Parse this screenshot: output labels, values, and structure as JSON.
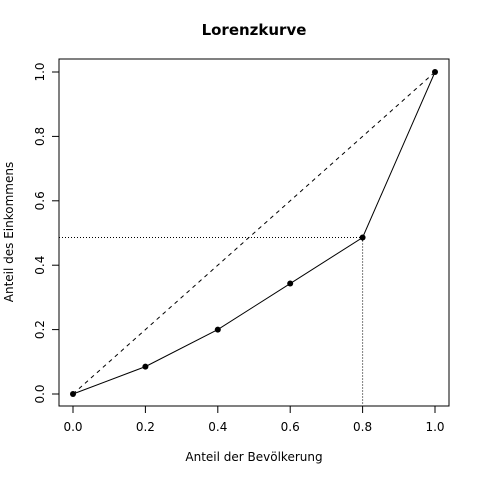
{
  "chart_data": {
    "type": "line",
    "title": "Lorenzkurve",
    "xlabel": "Anteil der Bevölkerung",
    "ylabel": "Anteil des Einkommens",
    "xlim": [
      0,
      1
    ],
    "ylim": [
      0,
      1
    ],
    "x_ticks": [
      0.0,
      0.2,
      0.4,
      0.6,
      0.8,
      1.0
    ],
    "y_ticks": [
      0.0,
      0.2,
      0.4,
      0.6,
      0.8,
      1.0
    ],
    "x_tick_labels": [
      "0.0",
      "0.2",
      "0.4",
      "0.6",
      "0.8",
      "1.0"
    ],
    "y_tick_labels": [
      "0.0",
      "0.2",
      "0.4",
      "0.6",
      "0.8",
      "1.0"
    ],
    "grid": false,
    "series": [
      {
        "x": [
          0.0,
          0.2,
          0.4,
          0.6,
          0.8,
          1.0
        ],
        "y": [
          0.0,
          0.085,
          0.2,
          0.343,
          0.486,
          1.0
        ],
        "line_style": "solid",
        "markers": true,
        "color": "#000000"
      }
    ],
    "reference_line": {
      "x": [
        0,
        1
      ],
      "y": [
        0,
        1
      ],
      "line_style": "dashed"
    },
    "guide_point": {
      "x": 0.8,
      "y": 0.486,
      "line_style": "dotted"
    }
  }
}
